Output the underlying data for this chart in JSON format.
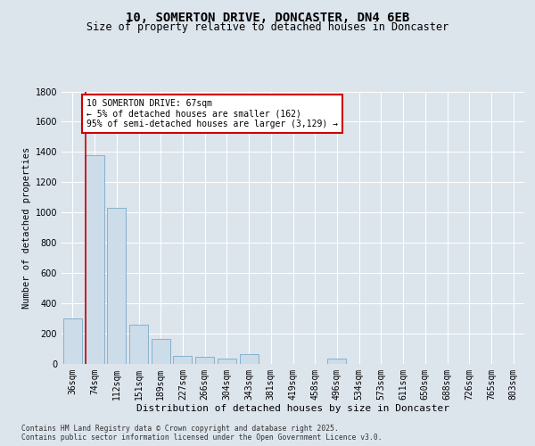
{
  "title": "10, SOMERTON DRIVE, DONCASTER, DN4 6EB",
  "subtitle": "Size of property relative to detached houses in Doncaster",
  "xlabel": "Distribution of detached houses by size in Doncaster",
  "ylabel": "Number of detached properties",
  "categories": [
    "36sqm",
    "74sqm",
    "112sqm",
    "151sqm",
    "189sqm",
    "227sqm",
    "266sqm",
    "304sqm",
    "343sqm",
    "381sqm",
    "419sqm",
    "458sqm",
    "496sqm",
    "534sqm",
    "573sqm",
    "611sqm",
    "650sqm",
    "688sqm",
    "726sqm",
    "765sqm",
    "803sqm"
  ],
  "values": [
    300,
    1380,
    1030,
    255,
    160,
    50,
    45,
    35,
    60,
    0,
    0,
    0,
    30,
    0,
    0,
    0,
    0,
    0,
    0,
    0,
    0
  ],
  "bar_color": "#ccdce8",
  "bar_edge_color": "#7aaac8",
  "vline_color": "#cc0000",
  "annotation_text": "10 SOMERTON DRIVE: 67sqm\n← 5% of detached houses are smaller (162)\n95% of semi-detached houses are larger (3,129) →",
  "annotation_box_color": "#cc0000",
  "ylim": [
    0,
    1800
  ],
  "yticks": [
    0,
    200,
    400,
    600,
    800,
    1000,
    1200,
    1400,
    1600,
    1800
  ],
  "background_color": "#dce4ec",
  "plot_bg_color": "#dce4ec",
  "grid_color": "#ffffff",
  "title_fontsize": 10,
  "subtitle_fontsize": 8.5,
  "ylabel_fontsize": 7.5,
  "xlabel_fontsize": 8,
  "tick_fontsize": 7,
  "footer_text": "Contains HM Land Registry data © Crown copyright and database right 2025.\nContains public sector information licensed under the Open Government Licence v3.0."
}
